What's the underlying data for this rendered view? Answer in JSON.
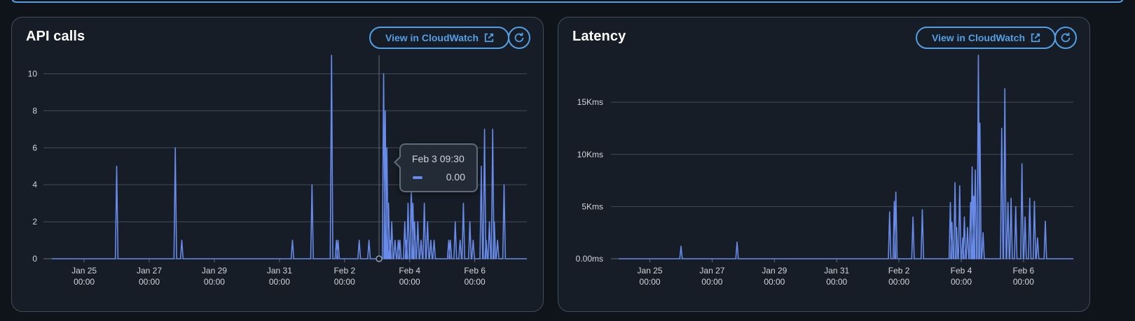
{
  "colors": {
    "accent": "#539fe5",
    "series": "#688ae8",
    "panel_bg": "#161d26",
    "gridline": "#414d5c"
  },
  "panels": [
    {
      "title": "API calls",
      "button_label": "View in CloudWatch",
      "button_icon": "external-link-icon",
      "refresh_icon": "refresh-icon",
      "tooltip": {
        "time": "Feb 3 09:30",
        "value": "0.00"
      }
    },
    {
      "title": "Latency",
      "button_label": "View in CloudWatch",
      "button_icon": "external-link-icon",
      "refresh_icon": "refresh-icon"
    }
  ],
  "chart_data": [
    {
      "type": "line",
      "title": "API calls",
      "xlabel": "",
      "ylabel": "",
      "x_ticks": [
        "Jan 25\n00:00",
        "Jan 27\n00:00",
        "Jan 29\n00:00",
        "Jan 31\n00:00",
        "Feb 2\n00:00",
        "Feb 4\n00:00",
        "Feb 6\n00:00"
      ],
      "x_tick_days": [
        1,
        3,
        5,
        7,
        9,
        11,
        13
      ],
      "y_ticks": [
        "0",
        "2",
        "4",
        "6",
        "8",
        "10"
      ],
      "ylim": [
        0,
        11
      ],
      "xlim": [
        -0.25,
        14.6
      ],
      "grid": true,
      "series": [
        {
          "values": [
            [
              2.0,
              5
            ],
            [
              3.8,
              6
            ],
            [
              4.0,
              1
            ],
            [
              7.4,
              1
            ],
            [
              8.0,
              4
            ],
            [
              8.6,
              11
            ],
            [
              8.75,
              1
            ],
            [
              8.8,
              1
            ],
            [
              9.45,
              1
            ],
            [
              9.75,
              1
            ],
            [
              10.2,
              10
            ],
            [
              10.25,
              8
            ],
            [
              10.3,
              6
            ],
            [
              10.35,
              3
            ],
            [
              10.4,
              1
            ],
            [
              10.45,
              2
            ],
            [
              10.55,
              1
            ],
            [
              10.65,
              1
            ],
            [
              10.7,
              1
            ],
            [
              10.85,
              2
            ],
            [
              10.9,
              1
            ],
            [
              10.95,
              3
            ],
            [
              11.05,
              4
            ],
            [
              11.1,
              3
            ],
            [
              11.15,
              2
            ],
            [
              11.25,
              2
            ],
            [
              11.35,
              1
            ],
            [
              11.45,
              3
            ],
            [
              11.55,
              2
            ],
            [
              11.65,
              1
            ],
            [
              11.75,
              1
            ],
            [
              12.2,
              1
            ],
            [
              12.25,
              1
            ],
            [
              12.4,
              2
            ],
            [
              12.55,
              1
            ],
            [
              12.65,
              3
            ],
            [
              12.85,
              2
            ],
            [
              12.95,
              1
            ],
            [
              13.2,
              5
            ],
            [
              13.3,
              7
            ],
            [
              13.35,
              1
            ],
            [
              13.45,
              2
            ],
            [
              13.55,
              7
            ],
            [
              13.6,
              2
            ],
            [
              13.7,
              1
            ],
            [
              13.9,
              4
            ]
          ]
        }
      ],
      "tooltip_x_day": 10.06
    },
    {
      "type": "line",
      "title": "Latency",
      "xlabel": "",
      "ylabel": "",
      "x_ticks": [
        "Jan 25\n00:00",
        "Jan 27\n00:00",
        "Jan 29\n00:00",
        "Jan 31\n00:00",
        "Feb 2\n00:00",
        "Feb 4\n00:00",
        "Feb 6\n00:00"
      ],
      "x_tick_days": [
        1,
        3,
        5,
        7,
        9,
        11,
        13
      ],
      "y_ticks": [
        "0.00ms",
        "5Kms",
        "10Kms",
        "15Kms"
      ],
      "y_tick_values": [
        0,
        5000,
        10000,
        15000
      ],
      "ylim": [
        0,
        19500
      ],
      "xlim": [
        -0.25,
        14.6
      ],
      "grid": true,
      "series": [
        {
          "values": [
            [
              2.0,
              1200
            ],
            [
              3.8,
              1600
            ],
            [
              8.7,
              4500
            ],
            [
              8.85,
              5500
            ],
            [
              8.9,
              6400
            ],
            [
              9.45,
              4000
            ],
            [
              9.75,
              4700
            ],
            [
              10.65,
              5400
            ],
            [
              10.7,
              3500
            ],
            [
              10.8,
              7300
            ],
            [
              10.85,
              3000
            ],
            [
              10.95,
              7000
            ],
            [
              11.05,
              2000
            ],
            [
              11.1,
              4000
            ],
            [
              11.2,
              3000
            ],
            [
              11.3,
              5400
            ],
            [
              11.35,
              8800
            ],
            [
              11.4,
              6000
            ],
            [
              11.45,
              8500
            ],
            [
              11.55,
              19500
            ],
            [
              11.6,
              13000
            ],
            [
              11.7,
              2500
            ],
            [
              12.3,
              12500
            ],
            [
              12.4,
              16300
            ],
            [
              12.5,
              5400
            ],
            [
              12.6,
              5800
            ],
            [
              12.75,
              5000
            ],
            [
              12.95,
              9100
            ],
            [
              13.05,
              4000
            ],
            [
              13.2,
              5800
            ],
            [
              13.35,
              5500
            ],
            [
              13.45,
              2000
            ],
            [
              13.7,
              3600
            ]
          ]
        }
      ]
    }
  ]
}
